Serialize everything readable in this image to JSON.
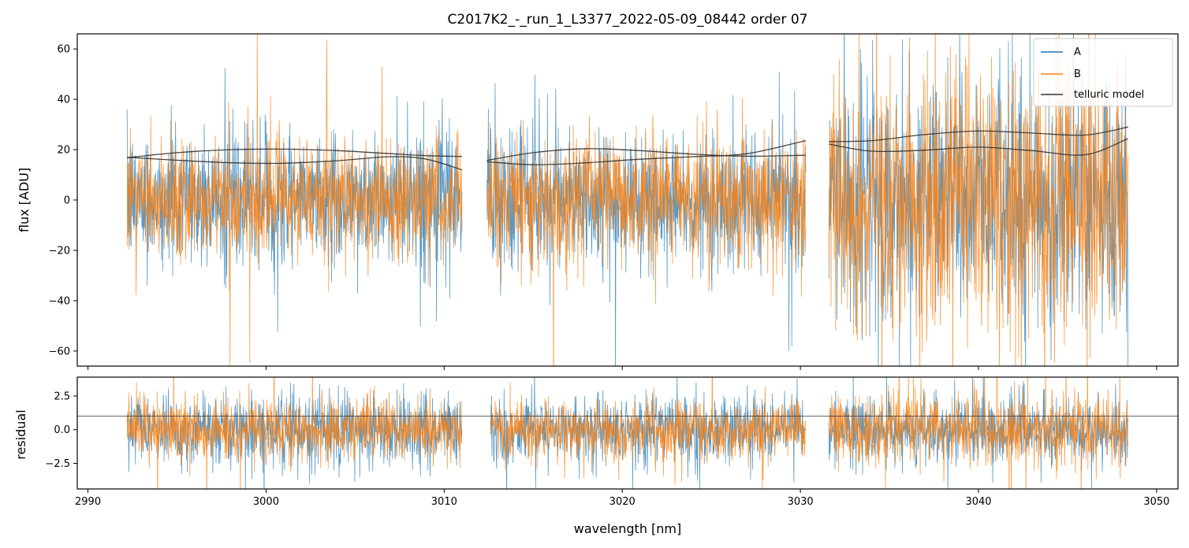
{
  "chart_data": [
    {
      "type": "line",
      "title": "C2017K2_-_run_1_L3377_2022-05-09_08442  order 07",
      "xlabel": "",
      "ylabel": "flux [ADU]",
      "xlim": [
        2989.4,
        3051.2
      ],
      "ylim": [
        -66,
        66
      ],
      "yticks": [
        -60,
        -40,
        -20,
        0,
        20,
        40,
        60
      ],
      "xticks": [
        2990,
        3000,
        3010,
        3020,
        3030,
        3040,
        3050
      ],
      "show_xticklabels": false,
      "segments": [
        [
          2992.2,
          3011.0
        ],
        [
          3012.4,
          3030.3
        ],
        [
          3031.6,
          3048.4
        ]
      ],
      "series": [
        {
          "name": "A",
          "color": "#1f77b4",
          "kind": "noise",
          "mean": 0,
          "sigma": [
            13,
            13,
            24
          ],
          "alpha": 0.75
        },
        {
          "name": "B",
          "color": "#ff7f0e",
          "kind": "noise",
          "mean": 0,
          "sigma": [
            12,
            12,
            26
          ],
          "alpha": 0.8
        },
        {
          "name": "telluric model",
          "color": "#333333",
          "kind": "curves",
          "curves": [
            {
              "x": [
                2992.2,
                2995,
                2998,
                3001,
                3004,
                3007,
                3009,
                3011.0
              ],
              "y": [
                16.8,
                18.8,
                20.0,
                20.2,
                19.6,
                18.4,
                17.6,
                17.3
              ]
            },
            {
              "x": [
                2992.2,
                2995,
                2998,
                3001,
                3004,
                3007,
                3009,
                3011.0
              ],
              "y": [
                17.0,
                15.8,
                14.8,
                14.6,
                15.6,
                17.2,
                16.2,
                12.0
              ]
            },
            {
              "x": [
                3012.4,
                3015,
                3018,
                3021,
                3024,
                3027,
                3030.3
              ],
              "y": [
                15.7,
                18.8,
                20.4,
                19.6,
                18.2,
                17.4,
                17.8
              ]
            },
            {
              "x": [
                3012.4,
                3015,
                3018,
                3021,
                3024,
                3027,
                3030.3
              ],
              "y": [
                15.2,
                14.0,
                14.8,
                16.2,
                17.2,
                18.4,
                23.6
              ]
            },
            {
              "x": [
                3031.6,
                3034,
                3037,
                3040,
                3043,
                3046,
                3048.4
              ],
              "y": [
                23.2,
                23.6,
                26.0,
                27.4,
                26.6,
                25.8,
                29.0
              ]
            },
            {
              "x": [
                3031.6,
                3034,
                3037,
                3040,
                3043,
                3046,
                3048.4
              ],
              "y": [
                22.2,
                19.4,
                19.8,
                21.0,
                19.6,
                18.0,
                24.4
              ]
            }
          ]
        }
      ],
      "legend": {
        "position": "top-right",
        "entries": [
          "A",
          "B",
          "telluric model"
        ]
      }
    },
    {
      "type": "line",
      "title": "",
      "xlabel": "wavelength [nm]",
      "ylabel": "residual",
      "xlim": [
        2989.4,
        3051.2
      ],
      "ylim": [
        -4.4,
        3.9
      ],
      "yticks": [
        -2.5,
        0.0,
        2.5
      ],
      "ytick_labels": [
        "−2.5",
        "0.0",
        "2.5"
      ],
      "xticks": [
        2990,
        3000,
        3010,
        3020,
        3030,
        3040,
        3050
      ],
      "segments": [
        [
          2992.2,
          3011.0
        ],
        [
          3012.6,
          3030.3
        ],
        [
          3031.6,
          3048.4
        ]
      ],
      "series": [
        {
          "name": "A",
          "color": "#1f77b4",
          "kind": "noise",
          "mean": 0,
          "sigma": [
            1.25,
            1.25,
            1.2
          ],
          "alpha": 0.75
        },
        {
          "name": "B",
          "color": "#ff7f0e",
          "kind": "noise",
          "mean": 0,
          "sigma": [
            1.1,
            1.1,
            1.35
          ],
          "alpha": 0.8
        }
      ],
      "hline": {
        "y": 1.0,
        "color": "#333333"
      }
    }
  ]
}
